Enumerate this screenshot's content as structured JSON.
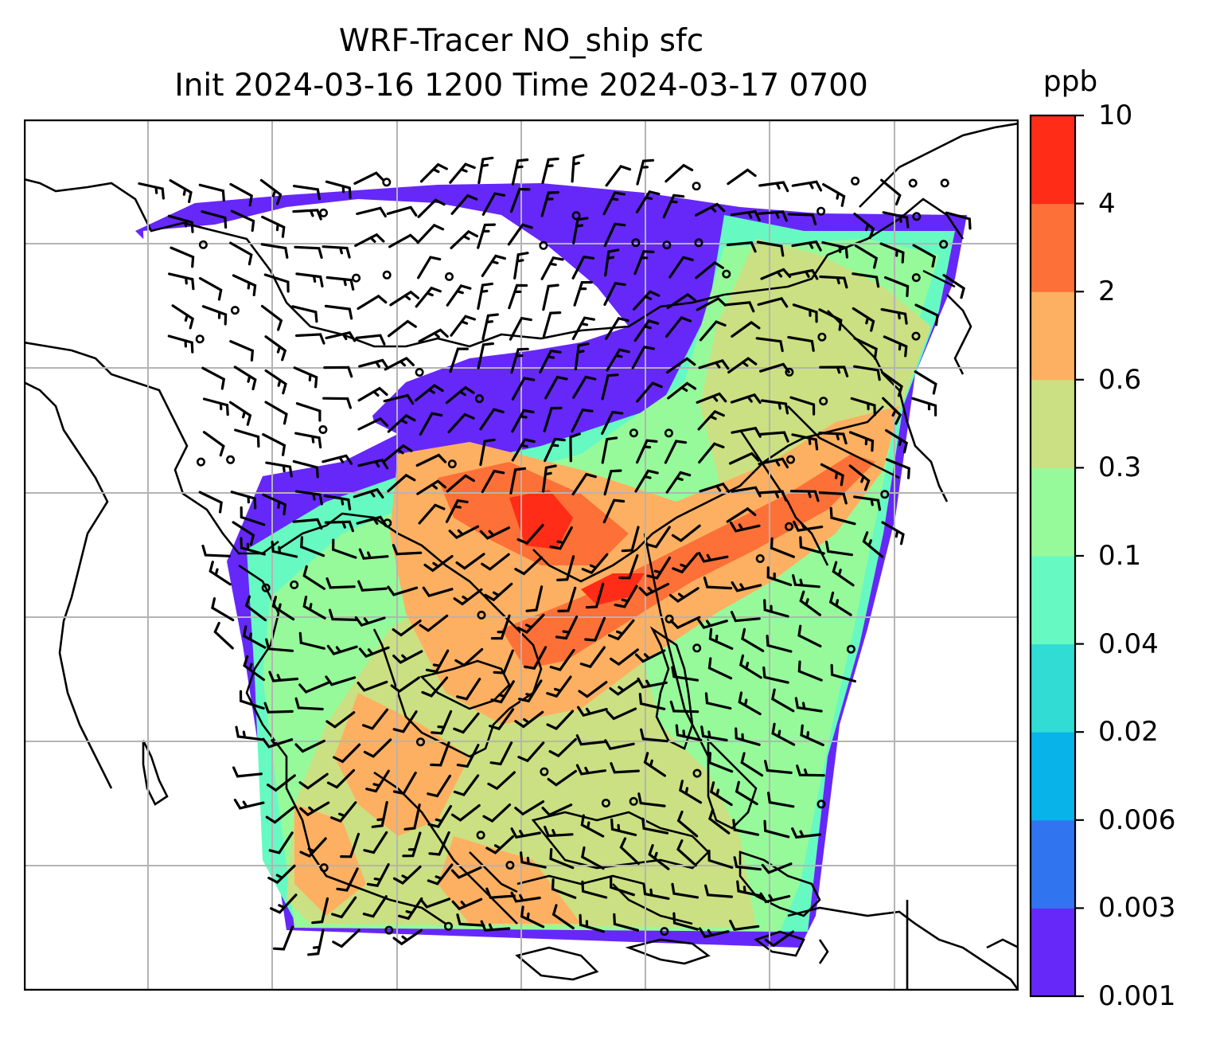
{
  "title": {
    "line1": "WRF-Tracer NO_ship sfc",
    "line2": "Init 2024-03-16 1200 Time 2024-03-17 0700"
  },
  "colorbar": {
    "units": "ppb",
    "levels": [
      "0.001",
      "0.003",
      "0.006",
      "0.02",
      "0.04",
      "0.1",
      "0.3",
      "0.6",
      "2",
      "4",
      "10"
    ],
    "colors": [
      "#6628f8",
      "#3174f0",
      "#07b3e8",
      "#30dcd4",
      "#66fac2",
      "#96fa9a",
      "#cbe082",
      "#fdb061",
      "#fd7037",
      "#ff2c17"
    ]
  },
  "map": {
    "type": "filled contour map with wind barbs",
    "field": "NO_ship",
    "level": "sfc",
    "gridlines": true,
    "features": [
      "coastlines",
      "country borders",
      "lat/lon gridlines",
      "wind barbs",
      "calm wind circles"
    ]
  }
}
